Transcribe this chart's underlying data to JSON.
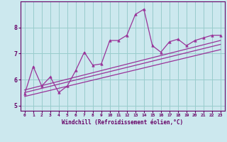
{
  "xlabel": "Windchill (Refroidissement éolien,°C)",
  "bg_color": "#cce8ee",
  "line_color": "#993399",
  "grid_color": "#99cccc",
  "axis_color": "#660066",
  "spine_color": "#660066",
  "x_ticks": [
    0,
    1,
    2,
    3,
    4,
    5,
    6,
    7,
    8,
    9,
    10,
    11,
    12,
    13,
    14,
    15,
    16,
    17,
    18,
    19,
    20,
    21,
    22,
    23
  ],
  "ylim": [
    4.8,
    9.0
  ],
  "xlim": [
    -0.5,
    23.5
  ],
  "yticks": [
    5,
    6,
    7,
    8
  ],
  "main_x": [
    0,
    1,
    2,
    3,
    4,
    5,
    6,
    7,
    8,
    9,
    10,
    11,
    12,
    13,
    14,
    15,
    16,
    17,
    18,
    19,
    20,
    21,
    22,
    23
  ],
  "main_y": [
    5.45,
    6.5,
    5.75,
    6.1,
    5.5,
    5.75,
    6.35,
    7.05,
    6.55,
    6.6,
    7.5,
    7.5,
    7.7,
    8.5,
    8.7,
    7.3,
    7.05,
    7.45,
    7.55,
    7.3,
    7.5,
    7.6,
    7.7,
    7.7
  ],
  "reg_lines": [
    {
      "x0": 0,
      "x1": 23,
      "y0": 5.35,
      "y1": 7.15
    },
    {
      "x0": 0,
      "x1": 23,
      "y0": 5.5,
      "y1": 7.35
    },
    {
      "x0": 0,
      "x1": 23,
      "y0": 5.6,
      "y1": 7.5
    }
  ]
}
